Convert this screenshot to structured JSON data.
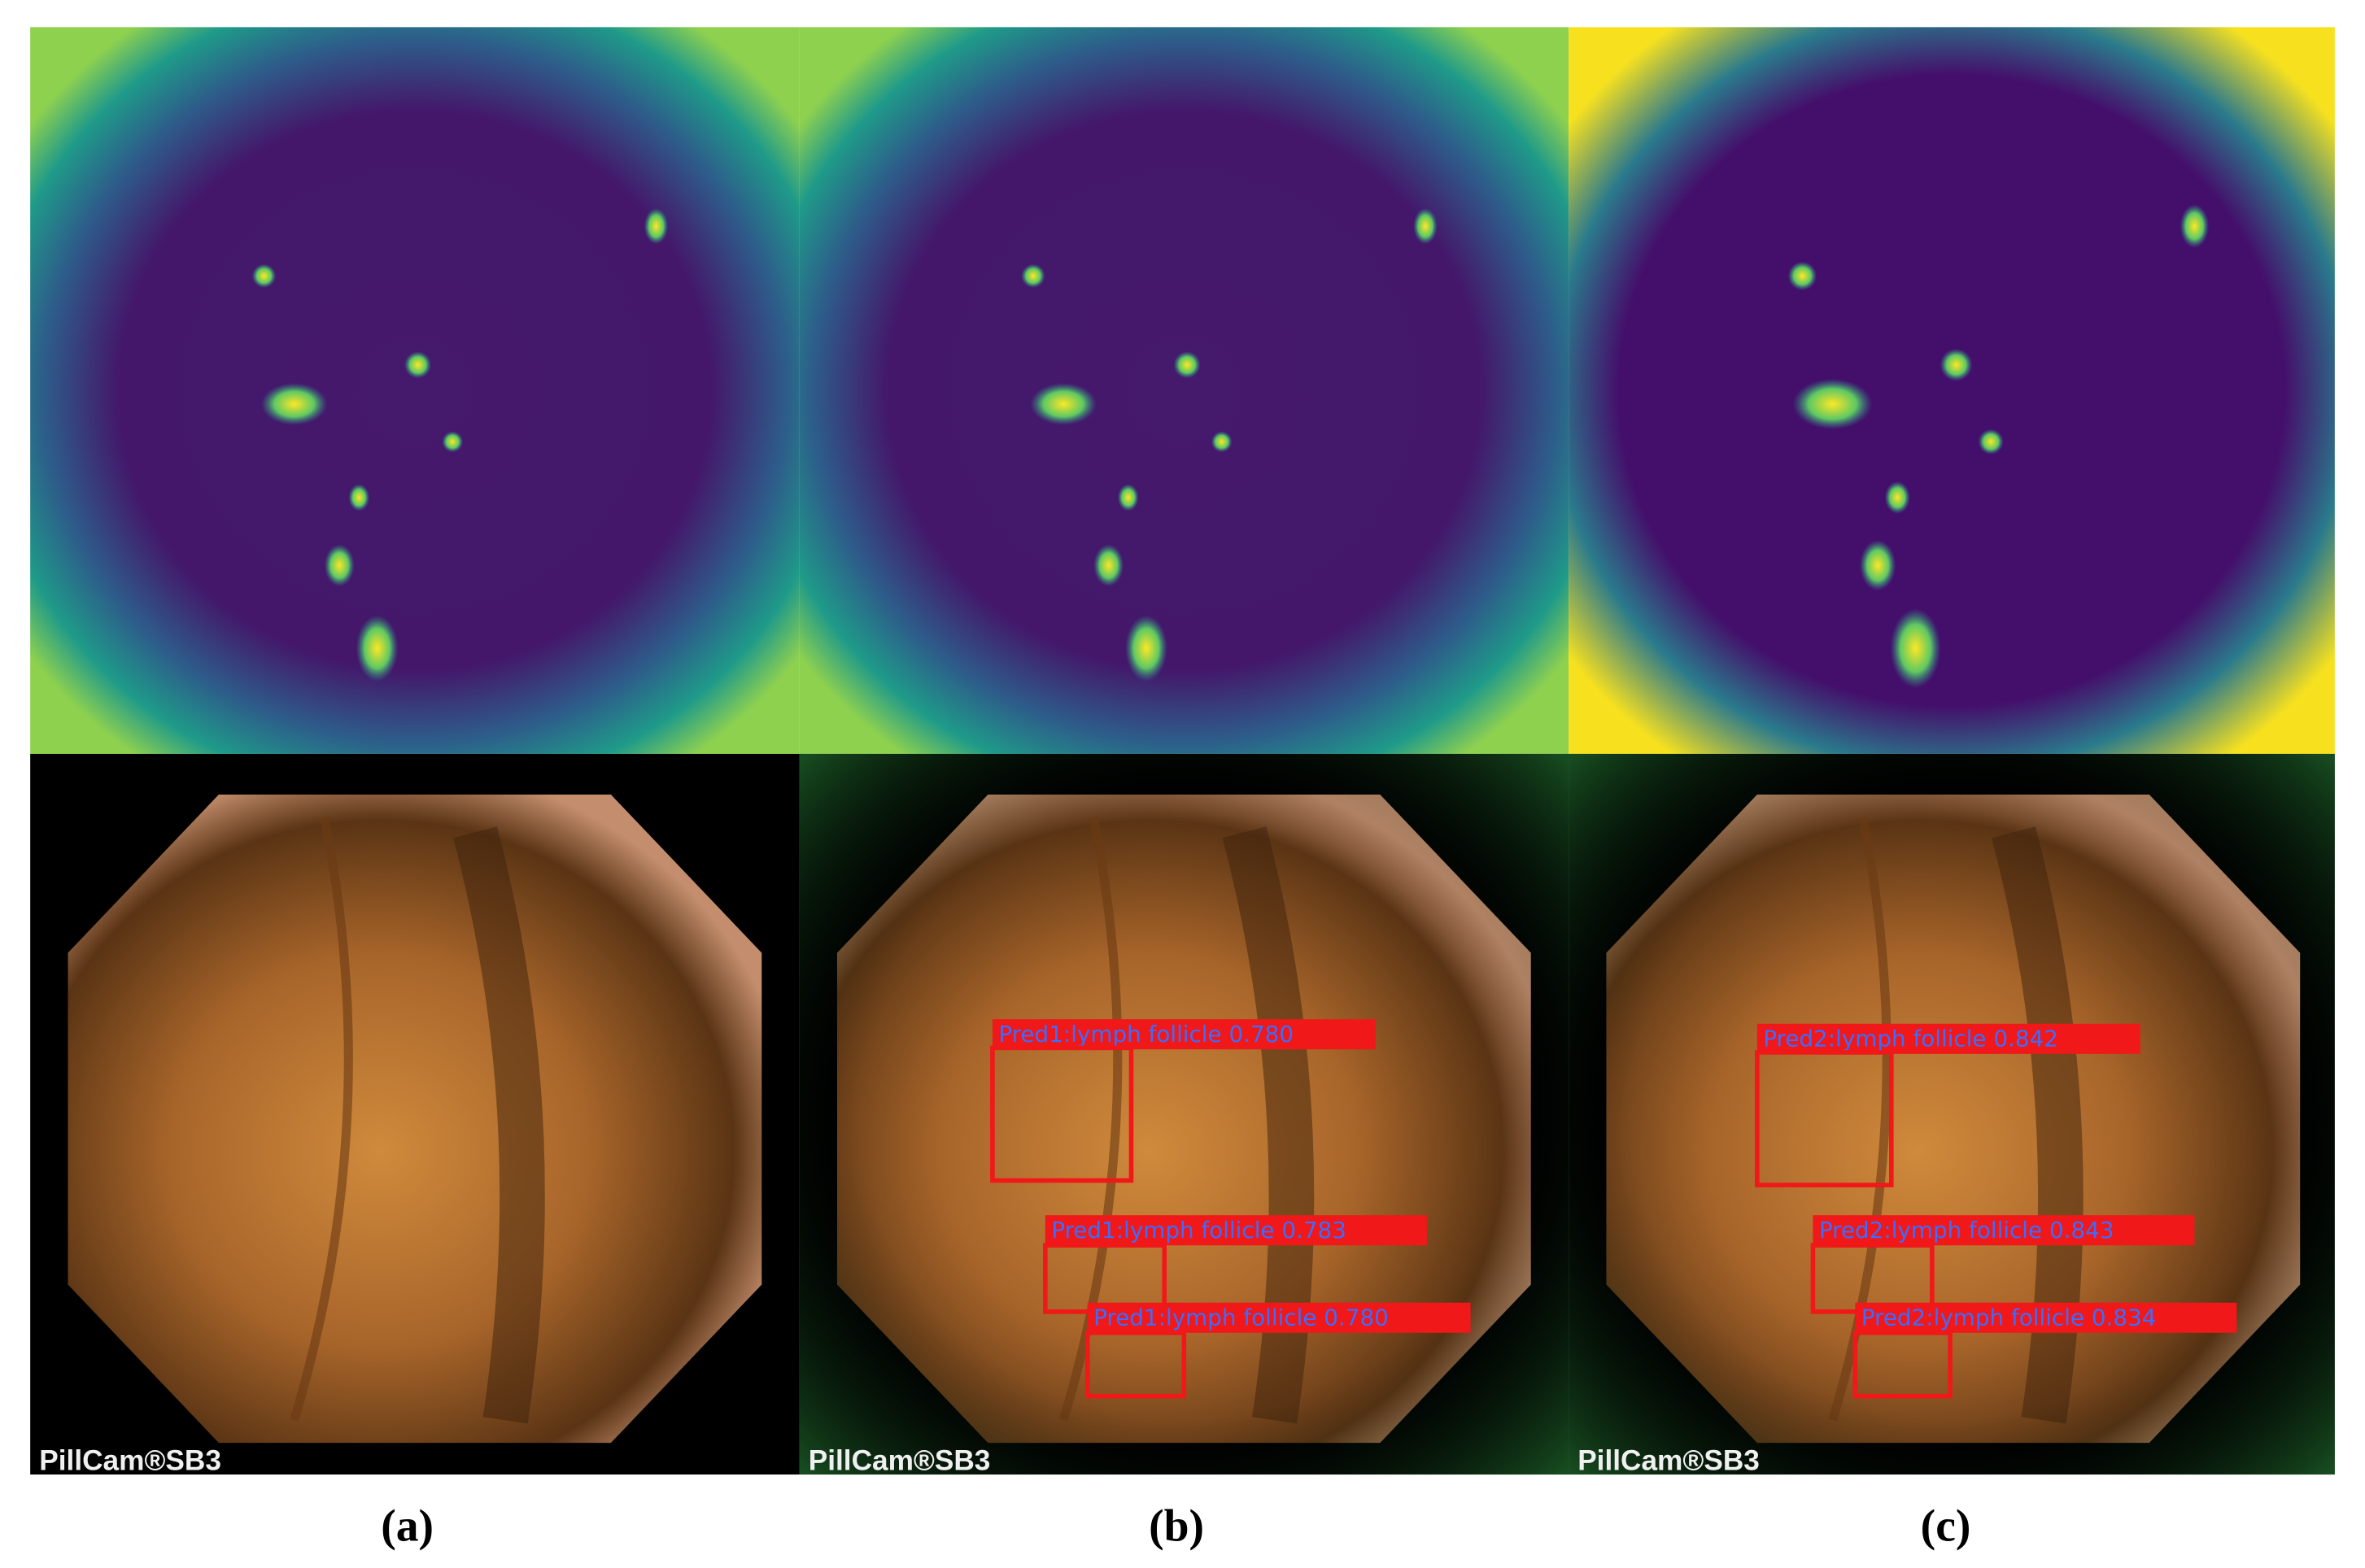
{
  "panels": [
    {
      "caption": "(a)",
      "watermark": "PillCam®SB3",
      "detections": []
    },
    {
      "caption": "(b)",
      "watermark": "PillCam®SB3",
      "detections": [
        {
          "label": "Pred1:lymph follicle 0.780"
        },
        {
          "label": "Pred1:lymph follicle 0.783"
        },
        {
          "label": "Pred1:lymph follicle 0.780"
        }
      ]
    },
    {
      "caption": "(c)",
      "watermark": "PillCam®SB3",
      "detections": [
        {
          "label": "Pred2:lymph follicle 0.842"
        },
        {
          "label": "Pred2:lymph follicle 0.843"
        },
        {
          "label": "Pred2:lymph follicle 0.834"
        }
      ]
    }
  ]
}
